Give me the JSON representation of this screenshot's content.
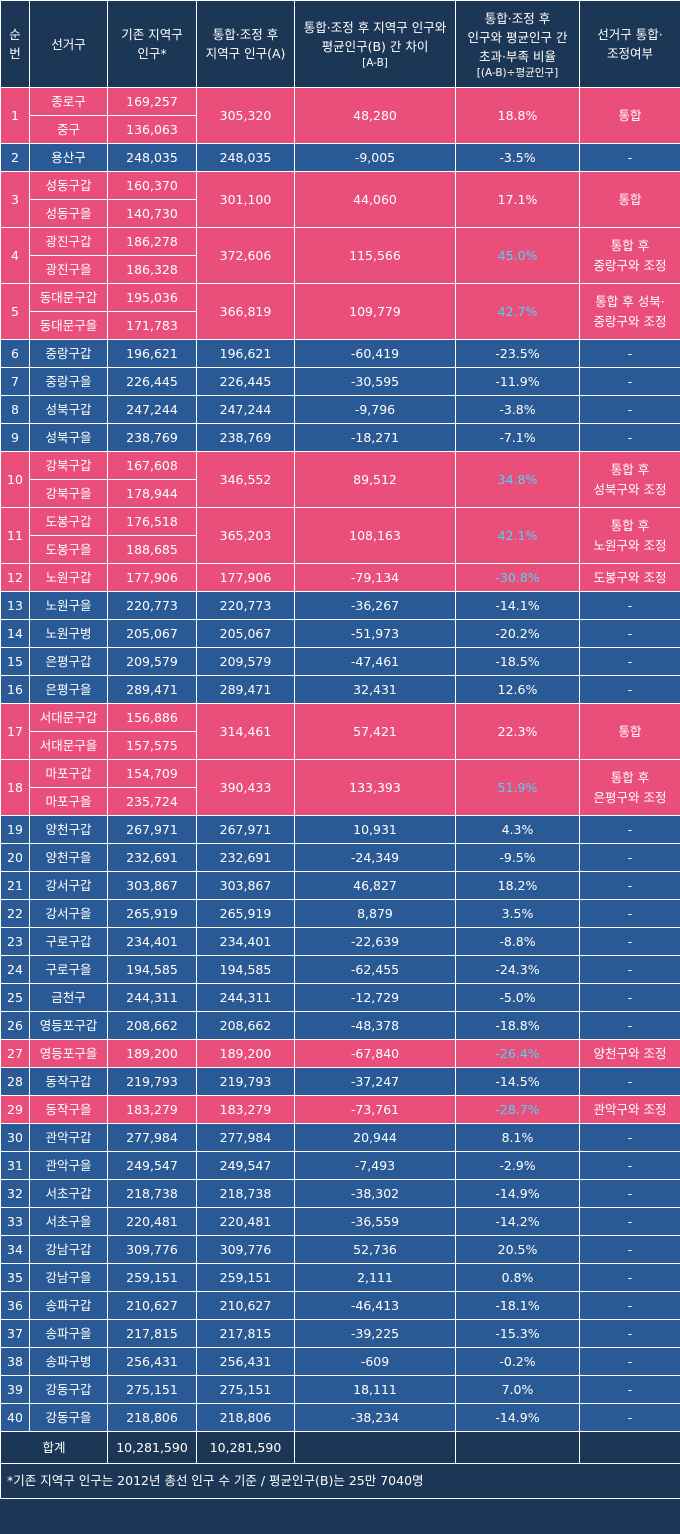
{
  "headers": {
    "no": [
      "순",
      "번"
    ],
    "district": "선거구",
    "pop_old": [
      "기존 지역구",
      "인구*"
    ],
    "pop_new": [
      "통합·조정 후",
      "지역구 인구(A)"
    ],
    "diff": [
      "통합·조정 후 지역구 인구와",
      "평균인구(B) 간 차이"
    ],
    "diff_sub": "[A-B]",
    "ratio": [
      "통합·조정 후",
      "인구와 평균인구 간",
      "초과·부족 비율"
    ],
    "ratio_sub": "[(A-B)÷평균인구]",
    "merge": [
      "선거구 통합·",
      "조정여부"
    ]
  },
  "groups": [
    {
      "no": "1",
      "hl": true,
      "districts": [
        {
          "name": "종로구",
          "pop": "169,257"
        },
        {
          "name": "중구",
          "pop": "136,063"
        }
      ],
      "pop_new": "305,320",
      "diff": "48,280",
      "ratio": "18.8%",
      "cyan": false,
      "note": [
        "통합"
      ]
    },
    {
      "no": "2",
      "hl": false,
      "districts": [
        {
          "name": "용산구",
          "pop": "248,035"
        }
      ],
      "pop_new": "248,035",
      "diff": "-9,005",
      "ratio": "-3.5%",
      "cyan": false,
      "note": [
        "-"
      ]
    },
    {
      "no": "3",
      "hl": true,
      "districts": [
        {
          "name": "성동구갑",
          "pop": "160,370"
        },
        {
          "name": "성동구을",
          "pop": "140,730"
        }
      ],
      "pop_new": "301,100",
      "diff": "44,060",
      "ratio": "17.1%",
      "cyan": false,
      "note": [
        "통합"
      ]
    },
    {
      "no": "4",
      "hl": true,
      "districts": [
        {
          "name": "광진구갑",
          "pop": "186,278"
        },
        {
          "name": "광진구을",
          "pop": "186,328"
        }
      ],
      "pop_new": "372,606",
      "diff": "115,566",
      "ratio": "45.0%",
      "cyan": true,
      "note": [
        "통합 후",
        "중랑구와 조정"
      ]
    },
    {
      "no": "5",
      "hl": true,
      "districts": [
        {
          "name": "동대문구갑",
          "pop": "195,036"
        },
        {
          "name": "동대문구을",
          "pop": "171,783"
        }
      ],
      "pop_new": "366,819",
      "diff": "109,779",
      "ratio": "42.7%",
      "cyan": true,
      "note": [
        "통합 후 성북·",
        "중랑구와 조정"
      ]
    },
    {
      "no": "6",
      "hl": false,
      "districts": [
        {
          "name": "중랑구갑",
          "pop": "196,621"
        }
      ],
      "pop_new": "196,621",
      "diff": "-60,419",
      "ratio": "-23.5%",
      "cyan": false,
      "note": [
        "-"
      ]
    },
    {
      "no": "7",
      "hl": false,
      "districts": [
        {
          "name": "중랑구을",
          "pop": "226,445"
        }
      ],
      "pop_new": "226,445",
      "diff": "-30,595",
      "ratio": "-11.9%",
      "cyan": false,
      "note": [
        "-"
      ]
    },
    {
      "no": "8",
      "hl": false,
      "districts": [
        {
          "name": "성북구갑",
          "pop": "247,244"
        }
      ],
      "pop_new": "247,244",
      "diff": "-9,796",
      "ratio": "-3.8%",
      "cyan": false,
      "note": [
        "-"
      ]
    },
    {
      "no": "9",
      "hl": false,
      "districts": [
        {
          "name": "성북구을",
          "pop": "238,769"
        }
      ],
      "pop_new": "238,769",
      "diff": "-18,271",
      "ratio": "-7.1%",
      "cyan": false,
      "note": [
        "-"
      ]
    },
    {
      "no": "10",
      "hl": true,
      "districts": [
        {
          "name": "강북구갑",
          "pop": "167,608"
        },
        {
          "name": "강북구을",
          "pop": "178,944"
        }
      ],
      "pop_new": "346,552",
      "diff": "89,512",
      "ratio": "34.8%",
      "cyan": true,
      "note": [
        "통합 후",
        "성북구와 조정"
      ]
    },
    {
      "no": "11",
      "hl": true,
      "districts": [
        {
          "name": "도봉구갑",
          "pop": "176,518"
        },
        {
          "name": "도봉구을",
          "pop": "188,685"
        }
      ],
      "pop_new": "365,203",
      "diff": "108,163",
      "ratio": "42.1%",
      "cyan": true,
      "note": [
        "통합 후",
        "노원구와 조정"
      ]
    },
    {
      "no": "12",
      "hl": true,
      "districts": [
        {
          "name": "노원구갑",
          "pop": "177,906"
        }
      ],
      "pop_new": "177,906",
      "diff": "-79,134",
      "ratio": "-30.8%",
      "cyan": true,
      "note": [
        "도봉구와 조정"
      ]
    },
    {
      "no": "13",
      "hl": false,
      "districts": [
        {
          "name": "노원구을",
          "pop": "220,773"
        }
      ],
      "pop_new": "220,773",
      "diff": "-36,267",
      "ratio": "-14.1%",
      "cyan": false,
      "note": [
        "-"
      ]
    },
    {
      "no": "14",
      "hl": false,
      "districts": [
        {
          "name": "노원구병",
          "pop": "205,067"
        }
      ],
      "pop_new": "205,067",
      "diff": "-51,973",
      "ratio": "-20.2%",
      "cyan": false,
      "note": [
        "-"
      ]
    },
    {
      "no": "15",
      "hl": false,
      "districts": [
        {
          "name": "은평구갑",
          "pop": "209,579"
        }
      ],
      "pop_new": "209,579",
      "diff": "-47,461",
      "ratio": "-18.5%",
      "cyan": false,
      "note": [
        "-"
      ]
    },
    {
      "no": "16",
      "hl": false,
      "districts": [
        {
          "name": "은평구을",
          "pop": "289,471"
        }
      ],
      "pop_new": "289,471",
      "diff": "32,431",
      "ratio": "12.6%",
      "cyan": false,
      "note": [
        "-"
      ]
    },
    {
      "no": "17",
      "hl": true,
      "districts": [
        {
          "name": "서대문구갑",
          "pop": "156,886"
        },
        {
          "name": "서대문구을",
          "pop": "157,575"
        }
      ],
      "pop_new": "314,461",
      "diff": "57,421",
      "ratio": "22.3%",
      "cyan": false,
      "note": [
        "통합"
      ]
    },
    {
      "no": "18",
      "hl": true,
      "districts": [
        {
          "name": "마포구갑",
          "pop": "154,709"
        },
        {
          "name": "마포구을",
          "pop": "235,724"
        }
      ],
      "pop_new": "390,433",
      "diff": "133,393",
      "ratio": "51.9%",
      "cyan": true,
      "note": [
        "통합 후",
        "은평구와 조정"
      ]
    },
    {
      "no": "19",
      "hl": false,
      "districts": [
        {
          "name": "양천구갑",
          "pop": "267,971"
        }
      ],
      "pop_new": "267,971",
      "diff": "10,931",
      "ratio": "4.3%",
      "cyan": false,
      "note": [
        "-"
      ]
    },
    {
      "no": "20",
      "hl": false,
      "districts": [
        {
          "name": "양천구을",
          "pop": "232,691"
        }
      ],
      "pop_new": "232,691",
      "diff": "-24,349",
      "ratio": "-9.5%",
      "cyan": false,
      "note": [
        "-"
      ]
    },
    {
      "no": "21",
      "hl": false,
      "districts": [
        {
          "name": "강서구갑",
          "pop": "303,867"
        }
      ],
      "pop_new": "303,867",
      "diff": "46,827",
      "ratio": "18.2%",
      "cyan": false,
      "note": [
        "-"
      ]
    },
    {
      "no": "22",
      "hl": false,
      "districts": [
        {
          "name": "강서구을",
          "pop": "265,919"
        }
      ],
      "pop_new": "265,919",
      "diff": "8,879",
      "ratio": "3.5%",
      "cyan": false,
      "note": [
        "-"
      ]
    },
    {
      "no": "23",
      "hl": false,
      "districts": [
        {
          "name": "구로구갑",
          "pop": "234,401"
        }
      ],
      "pop_new": "234,401",
      "diff": "-22,639",
      "ratio": "-8.8%",
      "cyan": false,
      "note": [
        "-"
      ]
    },
    {
      "no": "24",
      "hl": false,
      "districts": [
        {
          "name": "구로구을",
          "pop": "194,585"
        }
      ],
      "pop_new": "194,585",
      "diff": "-62,455",
      "ratio": "-24.3%",
      "cyan": false,
      "note": [
        "-"
      ]
    },
    {
      "no": "25",
      "hl": false,
      "districts": [
        {
          "name": "금천구",
          "pop": "244,311"
        }
      ],
      "pop_new": "244,311",
      "diff": "-12,729",
      "ratio": "-5.0%",
      "cyan": false,
      "note": [
        "-"
      ]
    },
    {
      "no": "26",
      "hl": false,
      "districts": [
        {
          "name": "영등포구갑",
          "pop": "208,662"
        }
      ],
      "pop_new": "208,662",
      "diff": "-48,378",
      "ratio": "-18.8%",
      "cyan": false,
      "note": [
        "-"
      ]
    },
    {
      "no": "27",
      "hl": true,
      "districts": [
        {
          "name": "영등포구을",
          "pop": "189,200"
        }
      ],
      "pop_new": "189,200",
      "diff": "-67,840",
      "ratio": "-26.4%",
      "cyan": true,
      "note": [
        "양천구와 조정"
      ]
    },
    {
      "no": "28",
      "hl": false,
      "districts": [
        {
          "name": "동작구갑",
          "pop": "219,793"
        }
      ],
      "pop_new": "219,793",
      "diff": "-37,247",
      "ratio": "-14.5%",
      "cyan": false,
      "note": [
        "-"
      ]
    },
    {
      "no": "29",
      "hl": true,
      "districts": [
        {
          "name": "동작구을",
          "pop": "183,279"
        }
      ],
      "pop_new": "183,279",
      "diff": "-73,761",
      "ratio": "-28.7%",
      "cyan": true,
      "note": [
        "관악구와 조정"
      ]
    },
    {
      "no": "30",
      "hl": false,
      "districts": [
        {
          "name": "관악구갑",
          "pop": "277,984"
        }
      ],
      "pop_new": "277,984",
      "diff": "20,944",
      "ratio": "8.1%",
      "cyan": false,
      "note": [
        "-"
      ]
    },
    {
      "no": "31",
      "hl": false,
      "districts": [
        {
          "name": "관악구을",
          "pop": "249,547"
        }
      ],
      "pop_new": "249,547",
      "diff": "-7,493",
      "ratio": "-2.9%",
      "cyan": false,
      "note": [
        "-"
      ]
    },
    {
      "no": "32",
      "hl": false,
      "districts": [
        {
          "name": "서초구갑",
          "pop": "218,738"
        }
      ],
      "pop_new": "218,738",
      "diff": "-38,302",
      "ratio": "-14.9%",
      "cyan": false,
      "note": [
        "-"
      ]
    },
    {
      "no": "33",
      "hl": false,
      "districts": [
        {
          "name": "서초구을",
          "pop": "220,481"
        }
      ],
      "pop_new": "220,481",
      "diff": "-36,559",
      "ratio": "-14.2%",
      "cyan": false,
      "note": [
        "-"
      ]
    },
    {
      "no": "34",
      "hl": false,
      "districts": [
        {
          "name": "강남구갑",
          "pop": "309,776"
        }
      ],
      "pop_new": "309,776",
      "diff": "52,736",
      "ratio": "20.5%",
      "cyan": false,
      "note": [
        "-"
      ]
    },
    {
      "no": "35",
      "hl": false,
      "districts": [
        {
          "name": "강남구을",
          "pop": "259,151"
        }
      ],
      "pop_new": "259,151",
      "diff": "2,111",
      "ratio": "0.8%",
      "cyan": false,
      "note": [
        "-"
      ]
    },
    {
      "no": "36",
      "hl": false,
      "districts": [
        {
          "name": "송파구갑",
          "pop": "210,627"
        }
      ],
      "pop_new": "210,627",
      "diff": "-46,413",
      "ratio": "-18.1%",
      "cyan": false,
      "note": [
        "-"
      ]
    },
    {
      "no": "37",
      "hl": false,
      "districts": [
        {
          "name": "송파구을",
          "pop": "217,815"
        }
      ],
      "pop_new": "217,815",
      "diff": "-39,225",
      "ratio": "-15.3%",
      "cyan": false,
      "note": [
        "-"
      ]
    },
    {
      "no": "38",
      "hl": false,
      "districts": [
        {
          "name": "송파구병",
          "pop": "256,431"
        }
      ],
      "pop_new": "256,431",
      "diff": "-609",
      "ratio": "-0.2%",
      "cyan": false,
      "note": [
        "-"
      ]
    },
    {
      "no": "39",
      "hl": false,
      "districts": [
        {
          "name": "강동구갑",
          "pop": "275,151"
        }
      ],
      "pop_new": "275,151",
      "diff": "18,111",
      "ratio": "7.0%",
      "cyan": false,
      "note": [
        "-"
      ]
    },
    {
      "no": "40",
      "hl": false,
      "districts": [
        {
          "name": "강동구을",
          "pop": "218,806"
        }
      ],
      "pop_new": "218,806",
      "diff": "-38,234",
      "ratio": "-14.9%",
      "cyan": false,
      "note": [
        "-"
      ]
    }
  ],
  "total": {
    "label": "합계",
    "pop_old": "10,281,590",
    "pop_new": "10,281,590"
  },
  "footnote": "*기존 지역구 인구는 2012년 총선 인구 수 기준 / 평균인구(B)는 25만 7040명",
  "colors": {
    "highlight": "#ea4f7c",
    "normal": "#2a5a95",
    "header": "#1c3655",
    "emphasis_text": "#4fd3f4"
  }
}
